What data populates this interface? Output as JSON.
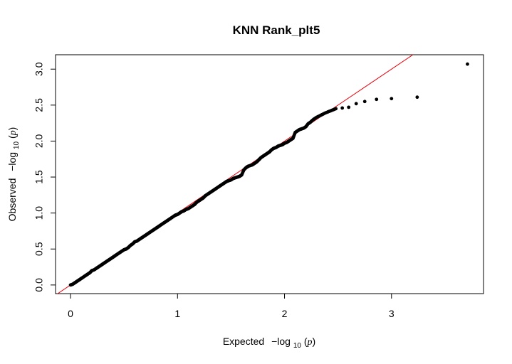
{
  "chart_data": {
    "type": "scatter",
    "title": "KNN Rank_plt5",
    "xlabel": {
      "prefix": "Expected",
      "fn": "−log",
      "sub": "10",
      "open": "(",
      "var": "p",
      "close": ")"
    },
    "ylabel": {
      "prefix": "Observed",
      "fn": "−log",
      "sub": "10",
      "open": "(",
      "var": "p",
      "close": ")"
    },
    "xlim": [
      -0.14,
      3.86
    ],
    "ylim": [
      -0.12,
      3.2
    ],
    "x_ticks": [
      "0",
      "1",
      "2",
      "3"
    ],
    "y_ticks": [
      "0.0",
      "0.5",
      "1.0",
      "1.5",
      "2.0",
      "2.5",
      "3.0"
    ],
    "grid": false,
    "legend": "none",
    "reference_line": {
      "slope": 1,
      "intercept": 0,
      "color": "#e8000b"
    },
    "point_color": "#000000",
    "series": [
      {
        "x": [
          0.0,
          0.02,
          0.04,
          0.06,
          0.08,
          0.1,
          0.12,
          0.14,
          0.16,
          0.18,
          0.2,
          0.22,
          0.24,
          0.26,
          0.28,
          0.3,
          0.32,
          0.34,
          0.36,
          0.38,
          0.4,
          0.42,
          0.44,
          0.46,
          0.48,
          0.5,
          0.52,
          0.54,
          0.56,
          0.58,
          0.6,
          0.62,
          0.64,
          0.66,
          0.68,
          0.7,
          0.72,
          0.74,
          0.76,
          0.78,
          0.8,
          0.82,
          0.84,
          0.86,
          0.88,
          0.9,
          0.92,
          0.94,
          0.96,
          0.98,
          1.0,
          1.02,
          1.04,
          1.06,
          1.08,
          1.1,
          1.12,
          1.14,
          1.16,
          1.18,
          1.2,
          1.22,
          1.24,
          1.26,
          1.28,
          1.3,
          1.32,
          1.34,
          1.36,
          1.38,
          1.4,
          1.42,
          1.44,
          1.46,
          1.48,
          1.5,
          1.52,
          1.54,
          1.56,
          1.58,
          1.6,
          1.62,
          1.64,
          1.66,
          1.68,
          1.7,
          1.72,
          1.74,
          1.76,
          1.78,
          1.8,
          1.82,
          1.84,
          1.86,
          1.88,
          1.9,
          1.92,
          1.94,
          1.96,
          1.98,
          2.0,
          2.02,
          2.04,
          2.06,
          2.08,
          2.1,
          2.12,
          2.14,
          2.16,
          2.18,
          2.2,
          2.22,
          2.24,
          2.27,
          2.3,
          2.34,
          2.38,
          2.43,
          2.48,
          2.54,
          2.6,
          2.67,
          2.75,
          2.86,
          3.0,
          3.24,
          3.71
        ],
        "y": [
          0.0,
          0.01,
          0.03,
          0.05,
          0.07,
          0.09,
          0.11,
          0.13,
          0.15,
          0.17,
          0.2,
          0.21,
          0.23,
          0.25,
          0.27,
          0.29,
          0.31,
          0.33,
          0.35,
          0.37,
          0.39,
          0.41,
          0.43,
          0.45,
          0.47,
          0.49,
          0.5,
          0.52,
          0.55,
          0.57,
          0.6,
          0.61,
          0.63,
          0.65,
          0.67,
          0.69,
          0.71,
          0.73,
          0.75,
          0.77,
          0.79,
          0.81,
          0.83,
          0.85,
          0.87,
          0.89,
          0.91,
          0.93,
          0.95,
          0.97,
          0.98,
          1.0,
          1.02,
          1.03,
          1.05,
          1.06,
          1.08,
          1.1,
          1.12,
          1.15,
          1.17,
          1.19,
          1.21,
          1.24,
          1.26,
          1.28,
          1.3,
          1.32,
          1.34,
          1.36,
          1.38,
          1.4,
          1.42,
          1.44,
          1.45,
          1.46,
          1.48,
          1.49,
          1.5,
          1.51,
          1.53,
          1.6,
          1.63,
          1.65,
          1.66,
          1.67,
          1.69,
          1.71,
          1.74,
          1.77,
          1.79,
          1.81,
          1.83,
          1.85,
          1.88,
          1.9,
          1.91,
          1.93,
          1.94,
          1.95,
          1.97,
          1.98,
          2.0,
          2.02,
          2.04,
          2.12,
          2.14,
          2.16,
          2.17,
          2.18,
          2.2,
          2.24,
          2.26,
          2.3,
          2.33,
          2.36,
          2.39,
          2.42,
          2.45,
          2.46,
          2.47,
          2.52,
          2.55,
          2.58,
          2.59,
          2.61,
          3.07
        ]
      }
    ]
  }
}
